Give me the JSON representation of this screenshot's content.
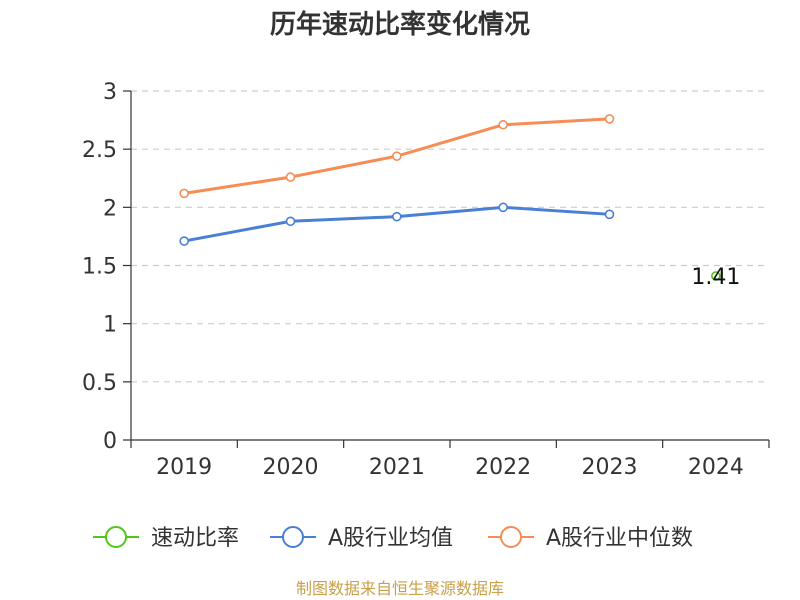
{
  "chart_data": {
    "type": "line",
    "title": "历年速动比率变化情况",
    "categories": [
      "2019",
      "2020",
      "2021",
      "2022",
      "2023",
      "2024"
    ],
    "ylim": [
      0,
      3
    ],
    "yticks": [
      "0",
      "0.5",
      "1",
      "1.5",
      "2",
      "2.5",
      "3"
    ],
    "grid": true,
    "legend_position": "bottom",
    "series": [
      {
        "name": "速动比率",
        "color": "#52c41a",
        "values": [
          null,
          null,
          null,
          null,
          null,
          1.41
        ],
        "labels": [
          "",
          "",
          "",
          "",
          "",
          "1.41"
        ]
      },
      {
        "name": "A股行业均值",
        "color": "#4a7fd6",
        "values": [
          1.71,
          1.88,
          1.92,
          2.0,
          1.94,
          null
        ]
      },
      {
        "name": "A股行业中位数",
        "color": "#f58d55",
        "values": [
          2.12,
          2.26,
          2.44,
          2.71,
          2.76,
          null
        ]
      }
    ]
  },
  "source_text": "制图数据来自恒生聚源数据库",
  "source_color": "#c8a04a"
}
